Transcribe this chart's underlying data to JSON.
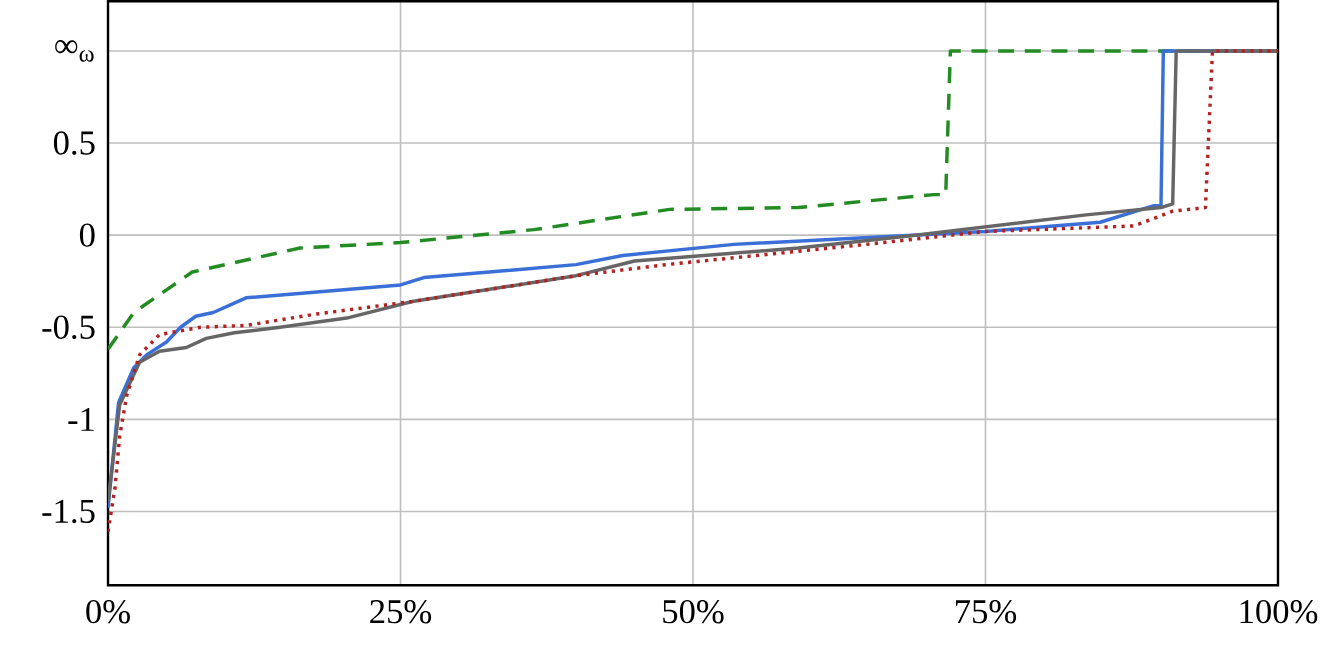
{
  "chart_data": {
    "type": "line",
    "xlim": [
      0,
      100
    ],
    "ylim": [
      -1.9,
      1.27
    ],
    "xticks": [
      {
        "value": 0,
        "label": "0%"
      },
      {
        "value": 25,
        "label": "25%"
      },
      {
        "value": 50,
        "label": "50%"
      },
      {
        "value": 75,
        "label": "75%"
      },
      {
        "value": 100,
        "label": "100%"
      }
    ],
    "yticks": [
      -1.5,
      -1,
      -0.5,
      0,
      0.5,
      {
        "value": 1,
        "label": "∞$_{ω}$"
      }
    ],
    "grid": true,
    "marker": "none",
    "series": [
      {
        "color": "#228b22",
        "line_style": "dashed",
        "x": [
          0,
          2.2,
          7.2,
          16.4,
          25,
          36.4,
          48,
          59,
          70.6,
          71.6,
          72,
          100
        ],
        "values": [
          -0.62,
          -0.42,
          -0.2,
          -0.07,
          -0.04,
          0.03,
          0.14,
          0.15,
          0.22,
          0.22,
          1,
          1
        ]
      },
      {
        "color": "#3a6fd8",
        "line_style": "solid",
        "x": [
          0,
          0.9,
          2.2,
          3.3,
          5,
          6.2,
          7.5,
          9,
          11.8,
          17.6,
          25,
          27,
          40,
          44,
          53.5,
          75,
          84.8,
          89.4,
          90,
          90.2,
          100
        ],
        "values": [
          -1.48,
          -0.91,
          -0.72,
          -0.65,
          -0.58,
          -0.5,
          -0.44,
          -0.42,
          -0.34,
          -0.31,
          -0.27,
          -0.23,
          -0.16,
          -0.11,
          -0.05,
          0.02,
          0.07,
          0.16,
          0.16,
          1,
          1
        ]
      },
      {
        "color": "#666666",
        "line_style": "solid",
        "x": [
          0,
          1,
          2.7,
          4.4,
          6.7,
          8.4,
          10.8,
          14.7,
          20.4,
          26,
          40,
          45,
          59,
          69,
          83.6,
          90,
          91,
          91.3,
          100
        ],
        "values": [
          -1.45,
          -0.92,
          -0.69,
          -0.63,
          -0.61,
          -0.56,
          -0.53,
          -0.5,
          -0.45,
          -0.36,
          -0.22,
          -0.14,
          -0.07,
          0,
          0.11,
          0.15,
          0.17,
          1,
          1
        ]
      },
      {
        "color": "#b22222",
        "line_style": "dotted",
        "x": [
          0,
          0.6,
          1,
          1.6,
          2.7,
          4.4,
          7.9,
          11.8,
          17.6,
          26,
          40,
          47.7,
          64.8,
          75,
          87.7,
          91,
          93.8,
          94.4,
          100
        ],
        "values": [
          -1.61,
          -1.37,
          -1.09,
          -0.87,
          -0.65,
          -0.54,
          -0.5,
          -0.49,
          -0.43,
          -0.36,
          -0.22,
          -0.16,
          -0.05,
          0.02,
          0.05,
          0.13,
          0.15,
          1,
          1
        ]
      }
    ]
  }
}
